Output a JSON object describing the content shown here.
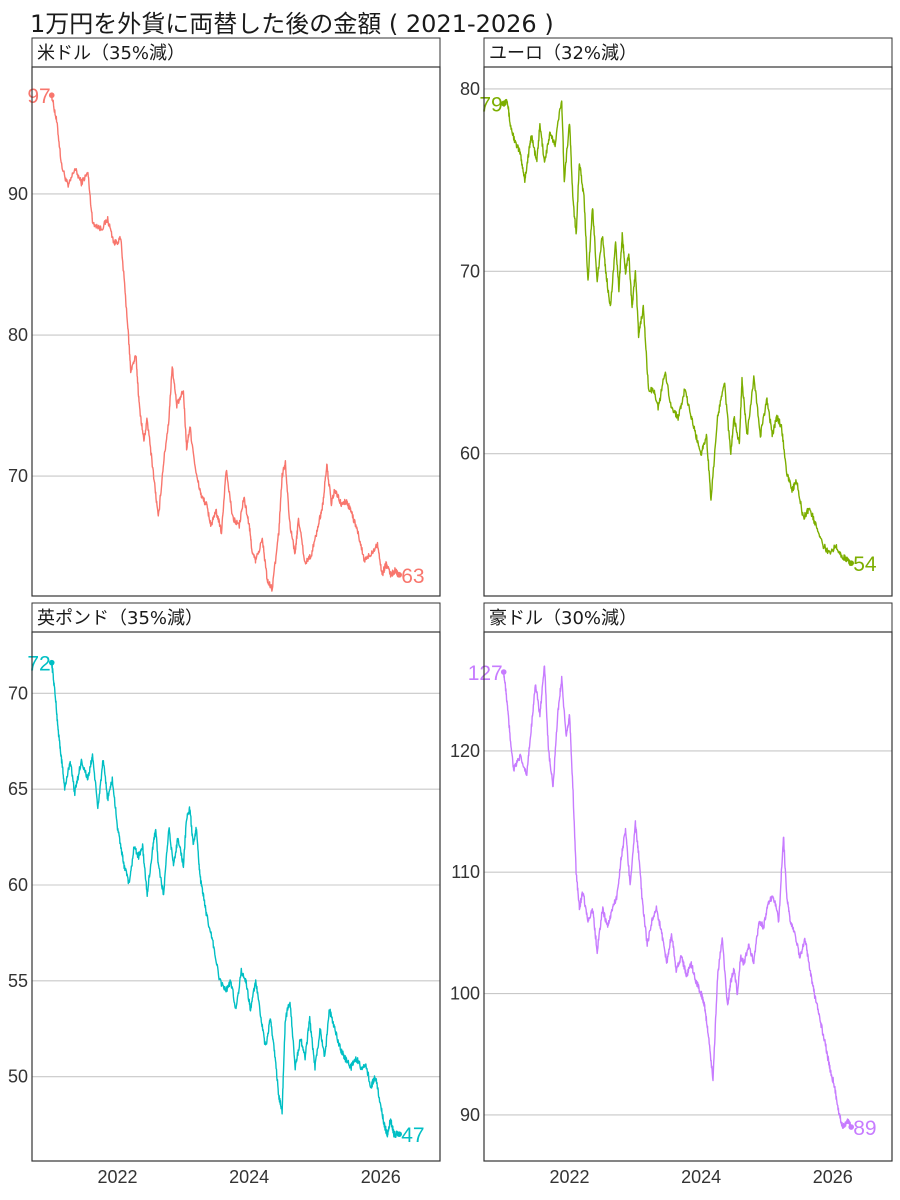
{
  "title": "1万円を外貨に両替した後の金額 ( 2021-2026 )",
  "chart_data": [
    {
      "type": "line",
      "strip": "米ドル（35%減）",
      "color": "#F8766D",
      "start_label": "97",
      "end_label": "63",
      "ylim": [
        61.5,
        99
      ],
      "yticks": [
        70,
        80,
        90
      ],
      "xlim": [
        2020.7,
        2026.9
      ],
      "xticks": [
        2022,
        2024,
        2026
      ],
      "grid": true,
      "x": [
        2021.0,
        2021.08,
        2021.15,
        2021.25,
        2021.35,
        2021.45,
        2021.55,
        2021.62,
        2021.75,
        2021.85,
        2021.95,
        2022.05,
        2022.15,
        2022.2,
        2022.28,
        2022.33,
        2022.4,
        2022.45,
        2022.55,
        2022.62,
        2022.7,
        2022.78,
        2022.83,
        2022.9,
        2023.0,
        2023.05,
        2023.1,
        2023.2,
        2023.28,
        2023.35,
        2023.42,
        2023.5,
        2023.58,
        2023.65,
        2023.75,
        2023.85,
        2023.92,
        2024.0,
        2024.05,
        2024.1,
        2024.2,
        2024.28,
        2024.35,
        2024.45,
        2024.5,
        2024.55,
        2024.62,
        2024.7,
        2024.75,
        2024.85,
        2024.95,
        2025.05,
        2025.12,
        2025.18,
        2025.25,
        2025.3,
        2025.4,
        2025.48,
        2025.55,
        2025.65,
        2025.75,
        2025.85,
        2025.95,
        2026.02,
        2026.08,
        2026.15,
        2026.22,
        2026.28
      ],
      "y": [
        97,
        95,
        92,
        90.5,
        91.8,
        90.8,
        91.5,
        88,
        87.5,
        88.2,
        86.5,
        86.8,
        81,
        77.5,
        78.5,
        75,
        72.5,
        74,
        70,
        67,
        71,
        74,
        77.8,
        75,
        76,
        72,
        73.5,
        70,
        68.5,
        68,
        66.5,
        67.5,
        66,
        70.5,
        67,
        66.5,
        68.5,
        66.5,
        64.5,
        64,
        65.5,
        62.5,
        62,
        66,
        70,
        71,
        66.5,
        64.5,
        67,
        63.8,
        64.5,
        66.5,
        68,
        70.8,
        68,
        69,
        68,
        68.2,
        67.5,
        66,
        64,
        64.5,
        65.2,
        63,
        63.8,
        63,
        63.3,
        63
      ]
    },
    {
      "type": "line",
      "strip": "ユーロ（32%減）",
      "color": "#7CAE00",
      "start_label": "79",
      "end_label": "54",
      "ylim": [
        52.2,
        81.2
      ],
      "yticks": [
        60,
        70,
        80
      ],
      "xlim": [
        2020.7,
        2026.9
      ],
      "xticks": [
        2022,
        2024,
        2026
      ],
      "grid": true,
      "x": [
        2021.0,
        2021.05,
        2021.1,
        2021.18,
        2021.25,
        2021.32,
        2021.38,
        2021.42,
        2021.5,
        2021.55,
        2021.62,
        2021.7,
        2021.78,
        2021.88,
        2021.92,
        2022.0,
        2022.05,
        2022.1,
        2022.15,
        2022.22,
        2022.28,
        2022.35,
        2022.42,
        2022.5,
        2022.55,
        2022.62,
        2022.7,
        2022.75,
        2022.8,
        2022.85,
        2022.9,
        2022.95,
        2023.0,
        2023.05,
        2023.12,
        2023.2,
        2023.28,
        2023.35,
        2023.45,
        2023.55,
        2023.65,
        2023.75,
        2023.85,
        2023.92,
        2024.0,
        2024.08,
        2024.15,
        2024.25,
        2024.35,
        2024.45,
        2024.5,
        2024.58,
        2024.62,
        2024.7,
        2024.8,
        2024.9,
        2025.0,
        2025.08,
        2025.15,
        2025.22,
        2025.3,
        2025.38,
        2025.45,
        2025.55,
        2025.65,
        2025.75,
        2025.85,
        2025.95,
        2026.05,
        2026.12,
        2026.2,
        2026.28
      ],
      "y": [
        79.2,
        79.5,
        78,
        77,
        76.5,
        75,
        76.5,
        77.5,
        76,
        78,
        76,
        77.5,
        77,
        79.5,
        75,
        78.2,
        74,
        72,
        76,
        74,
        69.5,
        73.5,
        69.5,
        72,
        70,
        68,
        71.5,
        69,
        72,
        70,
        71,
        68,
        70,
        66.5,
        68,
        63.5,
        63.5,
        62.5,
        64.5,
        62.5,
        62,
        63.5,
        62,
        61,
        60,
        61,
        57.5,
        62,
        64,
        60,
        62,
        60.5,
        64,
        61,
        64.2,
        61,
        63,
        61,
        62,
        61.5,
        59,
        58,
        58.5,
        56.5,
        57,
        56,
        55,
        54.5,
        55,
        54.5,
        54.2,
        54
      ]
    },
    {
      "type": "line",
      "strip": "英ポンド（35%減）",
      "color": "#00BFC4",
      "start_label": "72",
      "end_label": "47",
      "ylim": [
        45.6,
        73.2
      ],
      "yticks": [
        50,
        55,
        60,
        65,
        70
      ],
      "xlim": [
        2020.7,
        2026.9
      ],
      "xticks": [
        2022,
        2024,
        2026
      ],
      "grid": true,
      "x": [
        2021.0,
        2021.05,
        2021.1,
        2021.15,
        2021.2,
        2021.28,
        2021.35,
        2021.45,
        2021.55,
        2021.62,
        2021.7,
        2021.78,
        2021.85,
        2021.92,
        2022.0,
        2022.05,
        2022.1,
        2022.18,
        2022.25,
        2022.32,
        2022.38,
        2022.45,
        2022.52,
        2022.58,
        2022.62,
        2022.7,
        2022.78,
        2022.85,
        2022.92,
        2023.0,
        2023.05,
        2023.1,
        2023.15,
        2023.2,
        2023.25,
        2023.3,
        2023.35,
        2023.45,
        2023.55,
        2023.65,
        2023.72,
        2023.8,
        2023.88,
        2023.95,
        2024.02,
        2024.1,
        2024.18,
        2024.25,
        2024.32,
        2024.38,
        2024.45,
        2024.5,
        2024.55,
        2024.62,
        2024.7,
        2024.78,
        2024.85,
        2024.92,
        2025.0,
        2025.08,
        2025.15,
        2025.22,
        2025.3,
        2025.38,
        2025.45,
        2025.55,
        2025.62,
        2025.7,
        2025.78,
        2025.85,
        2025.92,
        2026.0,
        2026.05,
        2026.1,
        2026.15,
        2026.2,
        2026.28
      ],
      "y": [
        71.6,
        70,
        68,
        66.5,
        65,
        66.5,
        64.8,
        66.5,
        65.5,
        66.8,
        64,
        66.5,
        64.5,
        65.5,
        63,
        62,
        61,
        60,
        62,
        61.5,
        62,
        59.5,
        61.5,
        63,
        61,
        59.5,
        63,
        61,
        62.5,
        61,
        63.5,
        64,
        62,
        63,
        60.5,
        59.5,
        58.5,
        57,
        55,
        54.5,
        55,
        53.5,
        55.5,
        55,
        53.5,
        55,
        53,
        51.5,
        53,
        51.5,
        49,
        48.2,
        53,
        54,
        50.5,
        52,
        51,
        53,
        50.5,
        52.5,
        51,
        53.5,
        52.5,
        51.5,
        51,
        50.5,
        51,
        50.5,
        50.5,
        49.5,
        50,
        48.5,
        47.5,
        47,
        47.8,
        47,
        47
      ]
    },
    {
      "type": "line",
      "strip": "豪ドル（30%減）",
      "color": "#C77CFF",
      "start_label": "127",
      "end_label": "89",
      "ylim": [
        86.2,
        129.8
      ],
      "yticks": [
        90,
        100,
        110,
        120
      ],
      "xlim": [
        2020.7,
        2026.9
      ],
      "xticks": [
        2022,
        2024,
        2026
      ],
      "grid": true,
      "x": [
        2021.0,
        2021.05,
        2021.1,
        2021.15,
        2021.25,
        2021.35,
        2021.42,
        2021.48,
        2021.55,
        2021.62,
        2021.68,
        2021.75,
        2021.82,
        2021.88,
        2021.95,
        2022.0,
        2022.05,
        2022.1,
        2022.15,
        2022.2,
        2022.28,
        2022.35,
        2022.42,
        2022.5,
        2022.58,
        2022.65,
        2022.72,
        2022.78,
        2022.85,
        2022.92,
        2023.0,
        2023.05,
        2023.1,
        2023.18,
        2023.25,
        2023.32,
        2023.4,
        2023.48,
        2023.55,
        2023.62,
        2023.7,
        2023.78,
        2023.85,
        2023.92,
        2024.0,
        2024.05,
        2024.1,
        2024.18,
        2024.25,
        2024.32,
        2024.4,
        2024.45,
        2024.5,
        2024.55,
        2024.6,
        2024.65,
        2024.72,
        2024.8,
        2024.88,
        2024.95,
        2025.02,
        2025.1,
        2025.18,
        2025.25,
        2025.3,
        2025.35,
        2025.42,
        2025.5,
        2025.58,
        2025.65,
        2025.72,
        2025.8,
        2025.88,
        2025.95,
        2026.02,
        2026.08,
        2026.15,
        2026.22,
        2026.28
      ],
      "y": [
        126.5,
        124,
        121,
        118.5,
        119.5,
        118,
        122,
        125.5,
        123,
        127,
        120,
        117,
        123,
        126,
        121,
        123,
        117,
        110,
        107,
        108.5,
        106,
        107,
        103.5,
        107,
        105.5,
        107,
        108,
        111,
        113.5,
        109,
        114,
        111.5,
        108,
        104,
        106,
        107,
        105,
        102.5,
        105,
        102,
        103,
        101.5,
        102.5,
        101,
        100,
        99,
        97,
        93,
        101.5,
        104.5,
        99,
        101,
        102,
        100,
        103,
        102.5,
        104,
        102.5,
        106,
        105.5,
        107.5,
        108,
        106,
        113,
        108,
        106,
        105,
        103,
        104.5,
        102,
        100,
        98,
        96,
        94,
        92.5,
        90.5,
        89,
        89.5,
        89
      ]
    }
  ]
}
